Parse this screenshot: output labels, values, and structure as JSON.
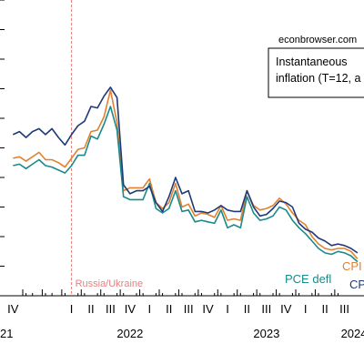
{
  "chart_data": {
    "type": "line",
    "source_label": "econbrowser.com",
    "legend_box": {
      "line1": "Instantaneous",
      "line2": "inflation (T=12, a"
    },
    "annotation": {
      "text": "Russia/Ukraine",
      "x": 10.0,
      "color": "#e88080"
    },
    "x_ticks": [
      {
        "x": 1,
        "label": "IV"
      },
      {
        "x": 10,
        "label": "I"
      },
      {
        "x": 13,
        "label": "II"
      },
      {
        "x": 16,
        "label": "III"
      },
      {
        "x": 19,
        "label": "IV"
      },
      {
        "x": 22,
        "label": "I"
      },
      {
        "x": 25,
        "label": "II"
      },
      {
        "x": 28,
        "label": "III"
      },
      {
        "x": 31,
        "label": "IV"
      },
      {
        "x": 34,
        "label": "I"
      },
      {
        "x": 37,
        "label": "II"
      },
      {
        "x": 40,
        "label": "III"
      },
      {
        "x": 43,
        "label": "IV"
      },
      {
        "x": 46,
        "label": "I"
      },
      {
        "x": 49,
        "label": "II"
      },
      {
        "x": 52,
        "label": "III"
      }
    ],
    "x_minor_ticks": [
      3,
      4,
      6,
      7,
      9,
      11,
      12,
      14,
      15,
      17,
      18,
      20,
      21,
      23,
      24,
      26,
      27,
      29,
      30,
      32,
      33,
      35,
      36,
      38,
      39,
      41,
      42,
      44,
      45,
      47,
      48,
      50,
      51
    ],
    "x_major_ticks": [
      2.5,
      5.5,
      8.5,
      11.5,
      14.5,
      17.5,
      20.5,
      23.5,
      26.5,
      29.5,
      32.5,
      35.5,
      38.5,
      41.5,
      44.5,
      47.5,
      50.5
    ],
    "year_labels": [
      {
        "x": 0,
        "label": "21"
      },
      {
        "x": 19,
        "label": "2022"
      },
      {
        "x": 40,
        "label": "2023"
      },
      {
        "x": 52,
        "label": "2024"
      }
    ],
    "xlim": [
      -1,
      55
    ],
    "ylim": [
      0,
      10
    ],
    "y_ticks": [
      0,
      1,
      2,
      3,
      4,
      5,
      6,
      7,
      8,
      9,
      10
    ],
    "series": [
      {
        "name": "CPI",
        "color": "#e0822f",
        "x": [
          1,
          2,
          3,
          4,
          5,
          6,
          7,
          8,
          9,
          10,
          11,
          12,
          13,
          14,
          15,
          16,
          17,
          18,
          19,
          20,
          21,
          22,
          23,
          24,
          25,
          26,
          27,
          28,
          29,
          30,
          31,
          32,
          33,
          34,
          35,
          36,
          37,
          38,
          39,
          40,
          41,
          42,
          43,
          44,
          45,
          46,
          47,
          48,
          49,
          50,
          51,
          52,
          53,
          54
        ],
        "y": [
          4.65,
          4.7,
          4.55,
          4.7,
          4.85,
          4.6,
          4.6,
          4.5,
          4.35,
          4.65,
          4.95,
          5.0,
          5.55,
          5.6,
          6.05,
          6.95,
          5.85,
          3.55,
          3.65,
          3.65,
          3.65,
          3.95,
          3.15,
          2.95,
          3.15,
          3.8,
          3.0,
          3.1,
          2.7,
          2.8,
          2.75,
          2.65,
          3.05,
          2.55,
          2.6,
          2.55,
          3.55,
          3.05,
          2.9,
          2.95,
          3.05,
          3.3,
          3.1,
          2.8,
          2.55,
          2.4,
          2.0,
          1.75,
          1.6,
          1.55,
          1.6,
          1.6,
          1.5,
          1.25
        ]
      },
      {
        "name": "CPI core",
        "color": "#1f3a78",
        "x": [
          1,
          2,
          3,
          4,
          5,
          6,
          7,
          8,
          9,
          10,
          11,
          12,
          13,
          14,
          15,
          16,
          17,
          18,
          19,
          20,
          21,
          22,
          23,
          24,
          25,
          26,
          27,
          28,
          29,
          30,
          31,
          32,
          33,
          34,
          35,
          36,
          37,
          38,
          39,
          40,
          41,
          42,
          43,
          44,
          45,
          46,
          47,
          48,
          49,
          50,
          51,
          52,
          53,
          54
        ],
        "y": [
          5.45,
          5.55,
          5.35,
          5.55,
          5.65,
          5.45,
          5.65,
          5.35,
          5.1,
          5.45,
          5.75,
          5.9,
          6.4,
          6.35,
          6.75,
          7.05,
          6.7,
          3.75,
          3.45,
          3.55,
          3.55,
          3.7,
          3.15,
          2.85,
          3.35,
          4.0,
          3.45,
          3.55,
          2.85,
          2.85,
          2.8,
          2.9,
          3.05,
          2.9,
          2.85,
          2.85,
          3.55,
          3.0,
          2.7,
          2.75,
          2.95,
          3.2,
          3.15,
          3.0,
          2.45,
          2.25,
          2.15,
          1.95,
          1.85,
          1.7,
          1.75,
          1.7,
          1.6,
          1.45
        ]
      },
      {
        "name": "PCE defl",
        "color": "#1a8a8a",
        "x": [
          1,
          2,
          3,
          4,
          5,
          6,
          7,
          8,
          9,
          10,
          11,
          12,
          13,
          14,
          15,
          16,
          17,
          18,
          19,
          20,
          21,
          22,
          23,
          24,
          25,
          26,
          27,
          28,
          29,
          30,
          31,
          32,
          33,
          34,
          35,
          36,
          37,
          38,
          39,
          40,
          41,
          42,
          43,
          44,
          45,
          46,
          47,
          48,
          49,
          50,
          51,
          52,
          53,
          54
        ],
        "y": [
          4.4,
          4.45,
          4.3,
          4.45,
          4.6,
          4.4,
          4.35,
          4.25,
          4.15,
          4.4,
          4.75,
          4.75,
          5.4,
          5.3,
          5.8,
          6.4,
          5.6,
          3.35,
          3.25,
          3.25,
          3.25,
          3.8,
          2.95,
          2.8,
          2.95,
          3.55,
          2.85,
          2.9,
          2.5,
          2.55,
          2.5,
          2.45,
          2.9,
          2.3,
          2.4,
          2.3,
          3.35,
          2.8,
          2.55,
          2.6,
          2.7,
          3.0,
          2.9,
          2.55,
          2.3,
          2.1,
          1.85,
          1.6,
          1.45,
          1.4,
          1.5,
          1.45,
          1.35,
          1.15
        ]
      }
    ],
    "series_labels": [
      {
        "text": "CPI",
        "color": "#e0822f"
      },
      {
        "text": "CP",
        "color": "#1f3a78"
      },
      {
        "text": "PCE defl",
        "color": "#1a8a8a"
      }
    ]
  }
}
